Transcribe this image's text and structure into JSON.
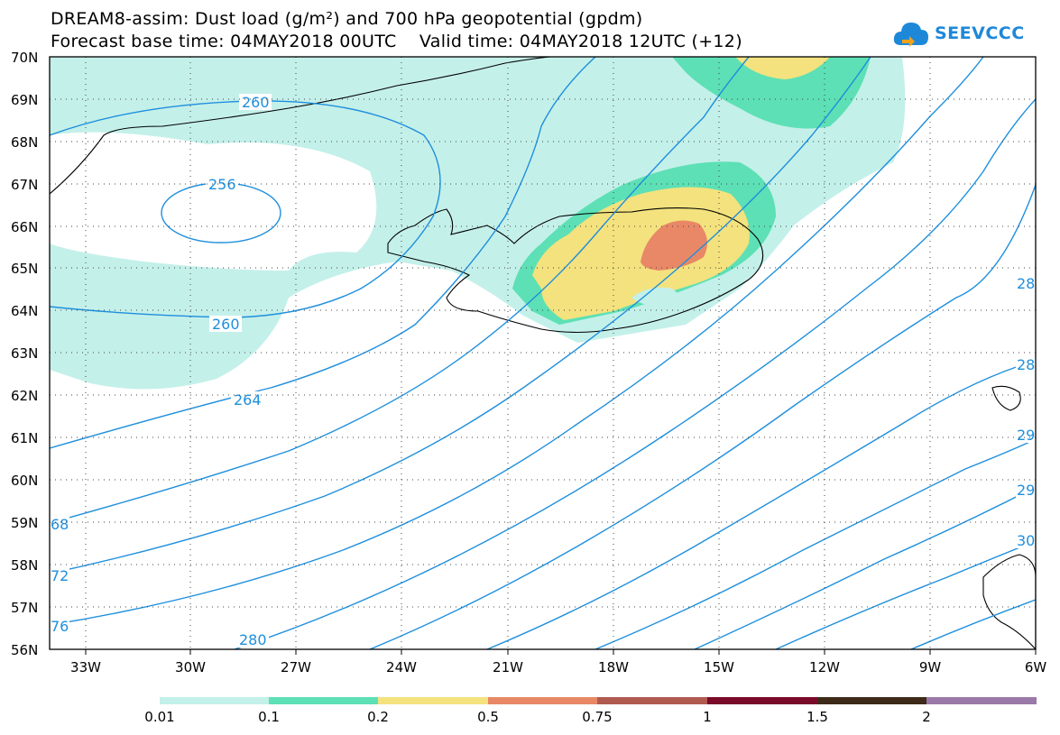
{
  "title": {
    "line1": "DREAM8-assim: Dust load (g/m²) and 700 hPa geopotential (gpdm)",
    "line2": "Forecast base time: 04MAY2018 00UTC    Valid time: 04MAY2018 12UTC (+12)"
  },
  "logo": {
    "text": "SEEVCCC",
    "icon": "cloud-icon",
    "color": "#1e88d8"
  },
  "axes": {
    "lat_labels": [
      "70N",
      "69N",
      "68N",
      "67N",
      "66N",
      "65N",
      "64N",
      "63N",
      "62N",
      "61N",
      "60N",
      "59N",
      "58N",
      "57N",
      "56N"
    ],
    "lon_labels": [
      "33W",
      "30W",
      "27W",
      "24W",
      "21W",
      "18W",
      "15W",
      "12W",
      "9W",
      "6W"
    ]
  },
  "contour_labels": [
    "260",
    "256",
    "260",
    "264",
    "280",
    "68",
    "72",
    "76",
    "28",
    "28",
    "29",
    "29",
    "30"
  ],
  "colorbar": {
    "colors": [
      "#c4f0ea",
      "#5de0b5",
      "#f3e27e",
      "#e88866",
      "#b05a50",
      "#7a0a2a",
      "#3e2a18",
      "#9a78a8"
    ],
    "labels": [
      "0.01",
      "0.1",
      "0.2",
      "0.5",
      "0.75",
      "1",
      "1.5",
      "2"
    ]
  }
}
